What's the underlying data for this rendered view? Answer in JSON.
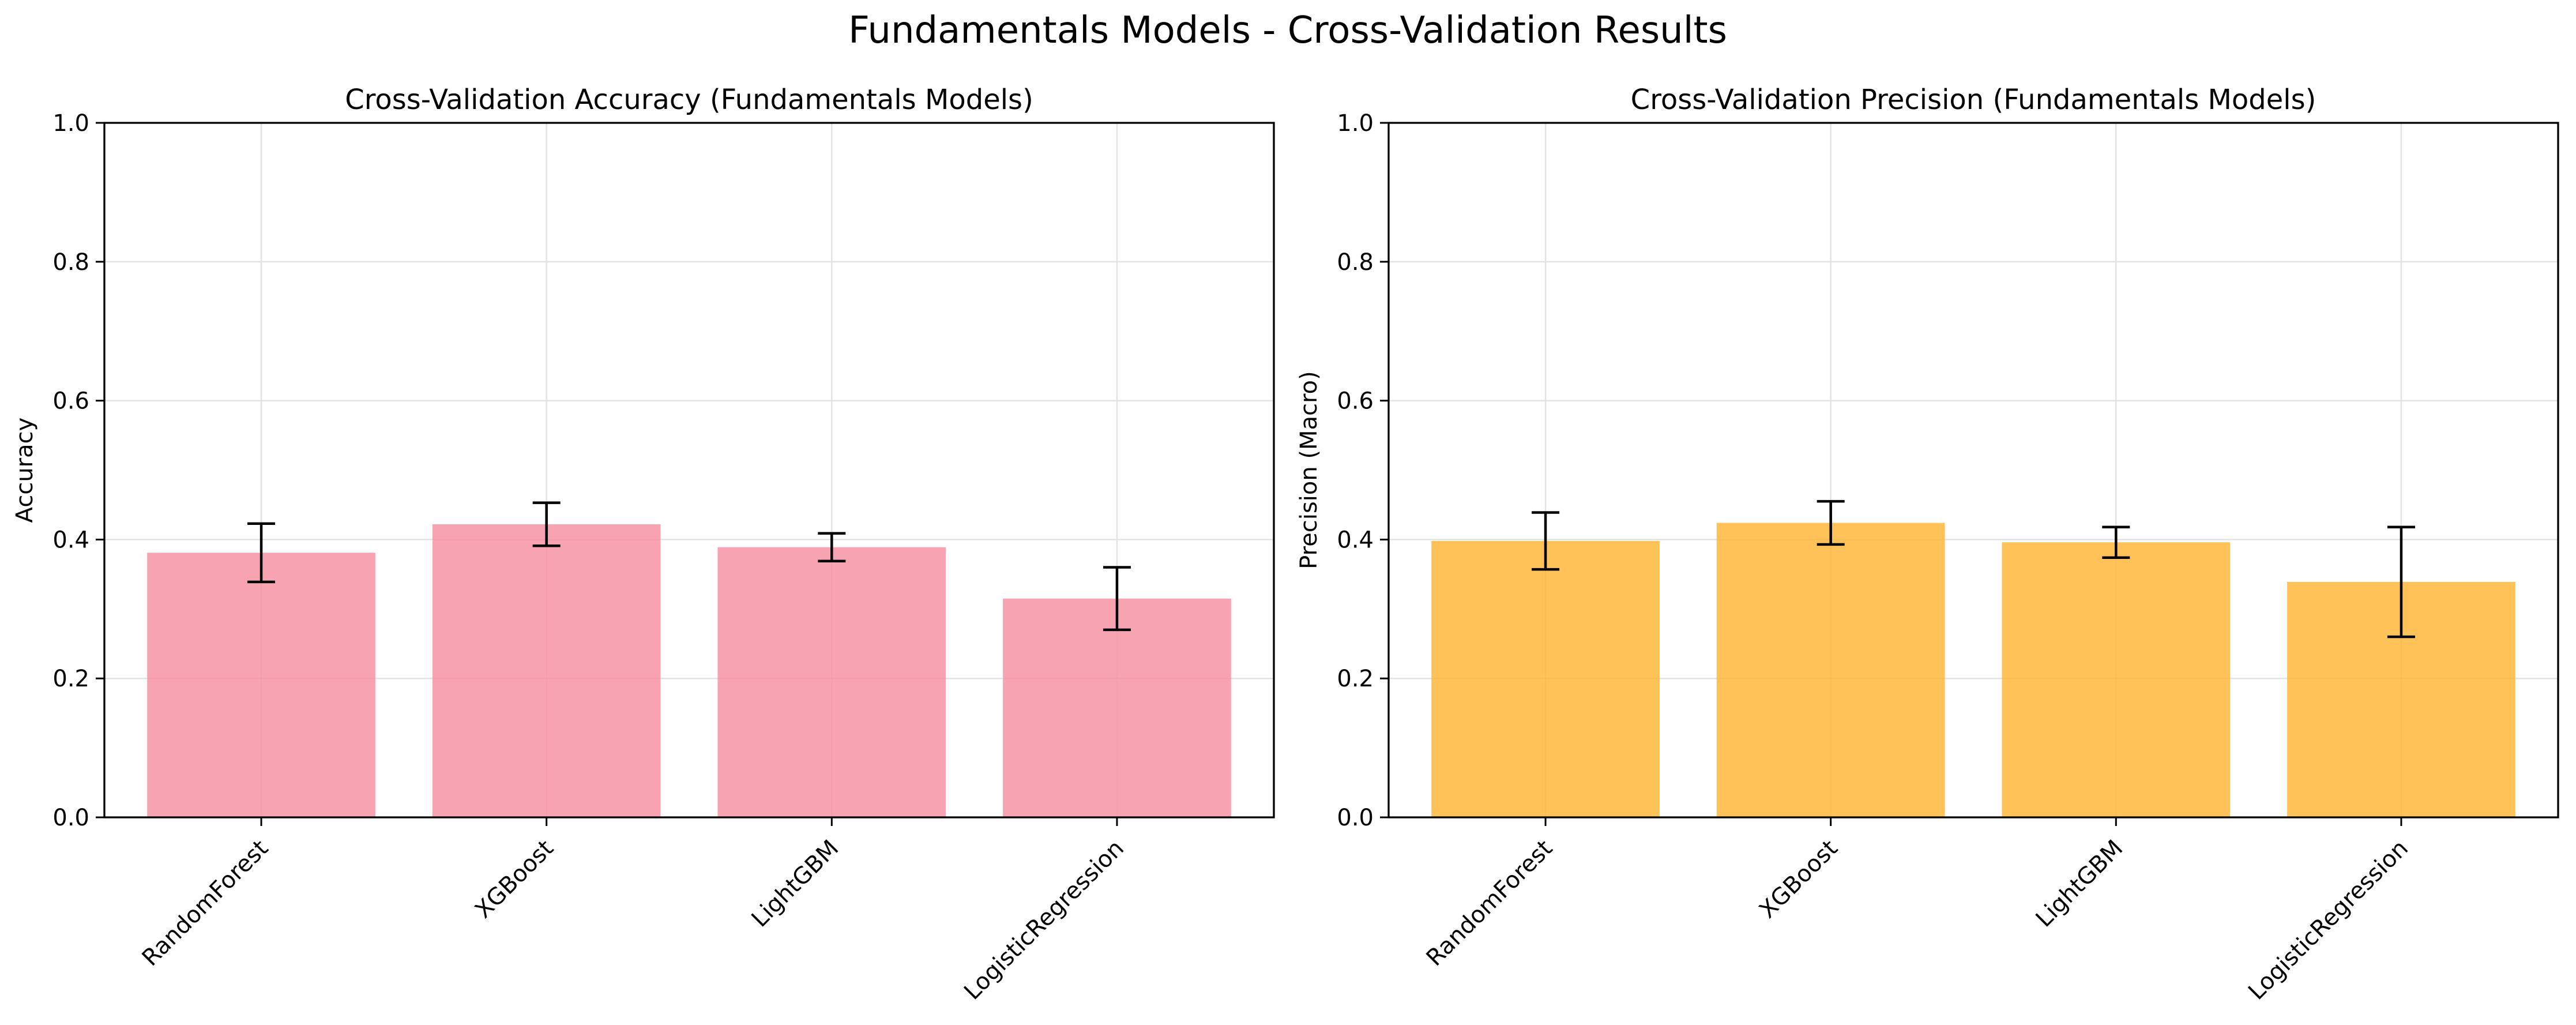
{
  "suptitle": "Fundamentals Models - Cross-Validation Results",
  "chart_data": [
    {
      "type": "bar",
      "title": "Cross-Validation Accuracy (Fundamentals Models)",
      "xlabel": "",
      "ylabel": "Accuracy",
      "categories": [
        "RandomForest",
        "XGBoost",
        "LightGBM",
        "LogisticRegression"
      ],
      "values": [
        0.381,
        0.422,
        0.389,
        0.315
      ],
      "errors": [
        0.042,
        0.031,
        0.02,
        0.045
      ],
      "ylim": [
        0,
        1.0
      ],
      "yticks": [
        "0.0",
        "0.2",
        "0.4",
        "0.6",
        "0.8",
        "1.0"
      ],
      "grid": true,
      "color": "#f78fa1"
    },
    {
      "type": "bar",
      "title": "Cross-Validation Precision (Fundamentals Models)",
      "xlabel": "",
      "ylabel": "Precision (Macro)",
      "categories": [
        "RandomForest",
        "XGBoost",
        "LightGBM",
        "LogisticRegression"
      ],
      "values": [
        0.398,
        0.424,
        0.396,
        0.339
      ],
      "errors": [
        0.041,
        0.031,
        0.022,
        0.079
      ],
      "ylim": [
        0,
        1.0
      ],
      "yticks": [
        "0.0",
        "0.2",
        "0.4",
        "0.6",
        "0.8",
        "1.0"
      ],
      "grid": true,
      "color": "#ffb433"
    }
  ]
}
